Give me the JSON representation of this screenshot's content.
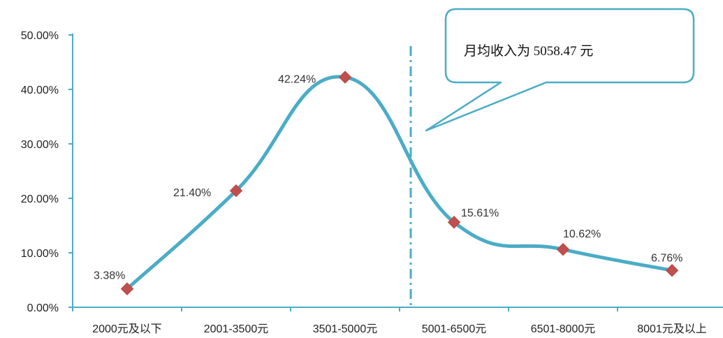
{
  "chart_data": {
    "type": "line",
    "categories": [
      "2000元及以下",
      "2001-3500元",
      "3501-5000元",
      "5001-6500元",
      "6501-8000元",
      "8001元及以上"
    ],
    "series": [
      {
        "values": [
          3.38,
          21.4,
          42.24,
          15.61,
          10.62,
          6.76
        ]
      }
    ],
    "data_labels": [
      "3.38%",
      "21.40%",
      "42.24%",
      "15.61%",
      "10.62%",
      "6.76%"
    ],
    "y_ticks": [
      "0.00%",
      "10.00%",
      "20.00%",
      "30.00%",
      "40.00%",
      "50.00%"
    ],
    "ylim": [
      0,
      50
    ],
    "smooth": true,
    "grid": false,
    "marker": "diamond",
    "annotation": {
      "text": "月均收入为 5058.47 元",
      "reference_value": 5058.47,
      "reference_line": "dash-dot vertical"
    },
    "colors": {
      "line": "#4bacc6",
      "marker": "#c0504d",
      "axis": "#4bacc6",
      "callout_border": "#4bacc6"
    }
  }
}
